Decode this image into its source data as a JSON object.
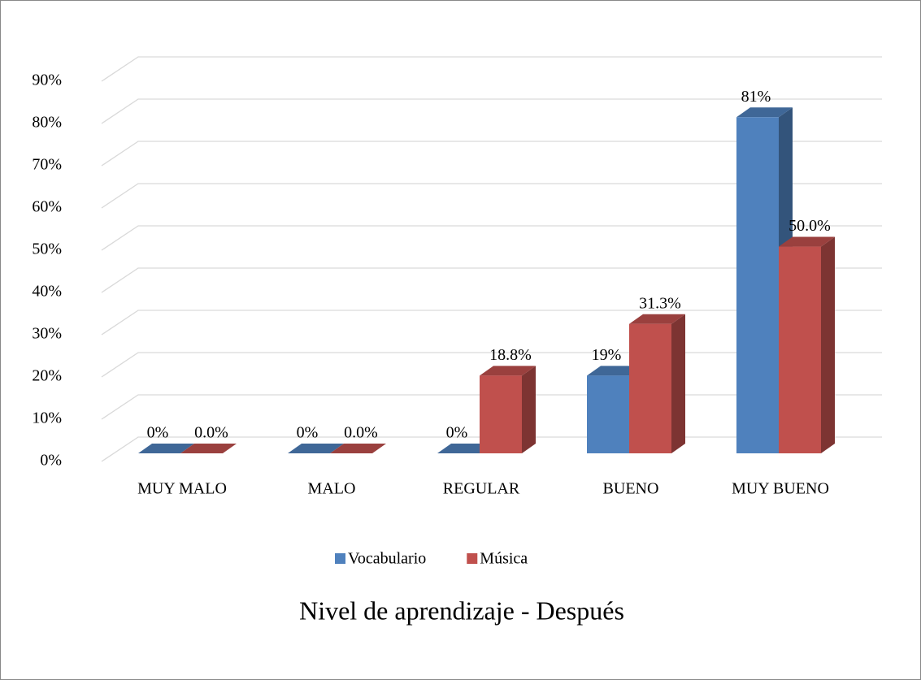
{
  "chart_data": {
    "type": "bar3d",
    "title": "Nivel de aprendizaje - Después",
    "categories": [
      "MUY MALO",
      "MALO",
      "REGULAR",
      "BUENO",
      "MUY BUENO"
    ],
    "series": [
      {
        "name": "Vocabulario",
        "color": "#4f81bd",
        "values": [
          0,
          0,
          0,
          18.8,
          81.3
        ],
        "value_labels": [
          "0%",
          "0%",
          "0%",
          "19%",
          "81%"
        ]
      },
      {
        "name": "Música",
        "color": "#c0504d",
        "values": [
          0.0,
          0.0,
          18.8,
          31.3,
          50.0
        ],
        "value_labels": [
          "0.0%",
          "0.0%",
          "18.8%",
          "31.3%",
          "50.0%"
        ]
      }
    ],
    "ylim": [
      0,
      90
    ],
    "yticks": [
      {
        "value": 0,
        "label": "0%"
      },
      {
        "value": 10,
        "label": "10%"
      },
      {
        "value": 20,
        "label": "20%"
      },
      {
        "value": 30,
        "label": "30%"
      },
      {
        "value": 40,
        "label": "40%"
      },
      {
        "value": 50,
        "label": "50%"
      },
      {
        "value": 60,
        "label": "60%"
      },
      {
        "value": 70,
        "label": "70%"
      },
      {
        "value": 80,
        "label": "80%"
      },
      {
        "value": 90,
        "label": "90%"
      }
    ],
    "grid": true
  }
}
